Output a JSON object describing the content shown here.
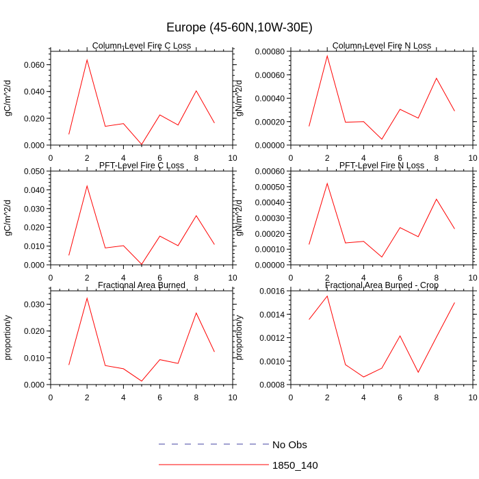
{
  "figure": {
    "title": "Europe (45-60N,10W-30E)",
    "series_color": "#ff0000",
    "obs_color": "#4040a0"
  },
  "legend": {
    "items": [
      {
        "label": "No Obs",
        "style": "dashed",
        "color": "#4040a0"
      },
      {
        "label": "1850_140",
        "style": "solid",
        "color": "#ff0000"
      }
    ]
  },
  "chart_data": [
    {
      "type": "line",
      "title": "Column-Level Fire C Loss",
      "xlabel": "",
      "ylabel": "gC/m^2/d",
      "xlim": [
        0,
        10
      ],
      "ylim": [
        0,
        0.07
      ],
      "xticks": [
        0,
        2,
        4,
        6,
        8,
        10
      ],
      "xtick_labels": [
        "0",
        "2",
        "4",
        "6",
        "8",
        "10"
      ],
      "yticks": [
        0,
        0.02,
        0.04,
        0.06
      ],
      "ytick_labels": [
        "0.000",
        "0.020",
        "0.040",
        "0.060"
      ],
      "yminor": 0.004,
      "series": [
        {
          "name": "1850_140",
          "x": [
            1,
            2,
            3,
            4,
            5,
            6,
            7,
            8,
            9
          ],
          "values": [
            0.008,
            0.0635,
            0.014,
            0.016,
            0.0005,
            0.0225,
            0.015,
            0.0405,
            0.0165
          ]
        }
      ]
    },
    {
      "type": "line",
      "title": "Column-Level Fire N Loss",
      "xlabel": "",
      "ylabel": "gN/m^2/d",
      "xlim": [
        0,
        10
      ],
      "ylim": [
        0,
        0.0008
      ],
      "xticks": [
        0,
        2,
        4,
        6,
        8,
        10
      ],
      "xtick_labels": [
        "0",
        "2",
        "4",
        "6",
        "8",
        "10"
      ],
      "yticks": [
        0,
        0.0002,
        0.0004,
        0.0006,
        0.0008
      ],
      "ytick_labels": [
        "0.00000",
        "0.00020",
        "0.00040",
        "0.00060",
        "0.00080"
      ],
      "yminor": 4e-05,
      "series": [
        {
          "name": "1850_140",
          "x": [
            1,
            2,
            3,
            4,
            5,
            6,
            7,
            8,
            9
          ],
          "values": [
            0.00016,
            0.00076,
            0.000195,
            0.0002,
            5e-05,
            0.000305,
            0.00023,
            0.00057,
            0.00029
          ]
        }
      ]
    },
    {
      "type": "line",
      "title": "PFT-Level Fire C Loss",
      "xlabel": "",
      "ylabel": "gC/m^2/d",
      "xlim": [
        0,
        10
      ],
      "ylim": [
        0,
        0.05
      ],
      "xticks": [
        0,
        2,
        4,
        6,
        8,
        10
      ],
      "xtick_labels": [
        "0",
        "2",
        "4",
        "6",
        "8",
        "10"
      ],
      "yticks": [
        0,
        0.01,
        0.02,
        0.03,
        0.04,
        0.05
      ],
      "ytick_labels": [
        "0.000",
        "0.010",
        "0.020",
        "0.030",
        "0.040",
        "0.050"
      ],
      "yminor": 0.002,
      "series": [
        {
          "name": "1850_140",
          "x": [
            1,
            2,
            3,
            4,
            5,
            6,
            7,
            8,
            9
          ],
          "values": [
            0.005,
            0.042,
            0.009,
            0.0102,
            0.0003,
            0.0153,
            0.0102,
            0.0262,
            0.0108
          ]
        }
      ]
    },
    {
      "type": "line",
      "title": "PFT-Level Fire N Loss",
      "xlabel": "",
      "ylabel": "gN/m^2/d",
      "xlim": [
        0,
        10
      ],
      "ylim": [
        0,
        0.0006
      ],
      "xticks": [
        0,
        2,
        4,
        6,
        8,
        10
      ],
      "xtick_labels": [
        "0",
        "2",
        "4",
        "6",
        "8",
        "10"
      ],
      "yticks": [
        0,
        0.0001,
        0.0002,
        0.0003,
        0.0004,
        0.0005,
        0.0006
      ],
      "ytick_labels": [
        "0.00000",
        "0.00010",
        "0.00020",
        "0.00030",
        "0.00040",
        "0.00050",
        "0.00060"
      ],
      "yminor": 2e-05,
      "series": [
        {
          "name": "1850_140",
          "x": [
            1,
            2,
            3,
            4,
            5,
            6,
            7,
            8,
            9
          ],
          "values": [
            0.00013,
            0.00052,
            0.00014,
            0.00015,
            5e-05,
            0.000238,
            0.00018,
            0.00042,
            0.00023
          ]
        }
      ]
    },
    {
      "type": "line",
      "title": "Fractional Area Burned",
      "xlabel": "",
      "ylabel": "proportion/y",
      "xlim": [
        0,
        10
      ],
      "ylim": [
        0,
        0.035
      ],
      "xticks": [
        0,
        2,
        4,
        6,
        8,
        10
      ],
      "xtick_labels": [
        "0",
        "2",
        "4",
        "6",
        "8",
        "10"
      ],
      "yticks": [
        0,
        0.01,
        0.02,
        0.03
      ],
      "ytick_labels": [
        "0.000",
        "0.010",
        "0.020",
        "0.030"
      ],
      "yminor": 0.002,
      "series": [
        {
          "name": "1850_140",
          "x": [
            1,
            2,
            3,
            4,
            5,
            6,
            7,
            8,
            9
          ],
          "values": [
            0.0073,
            0.0322,
            0.0071,
            0.0059,
            0.0013,
            0.0093,
            0.0079,
            0.0267,
            0.0122
          ]
        }
      ]
    },
    {
      "type": "line",
      "title": "Fractional Area Burned - Crop",
      "xlabel": "",
      "ylabel": "proportion/y",
      "xlim": [
        0,
        10
      ],
      "ylim": [
        0.0008,
        0.0016
      ],
      "xticks": [
        0,
        2,
        4,
        6,
        8,
        10
      ],
      "xtick_labels": [
        "0",
        "2",
        "4",
        "6",
        "8",
        "10"
      ],
      "yticks": [
        0.0008,
        0.001,
        0.0012,
        0.0014,
        0.0016
      ],
      "ytick_labels": [
        "0.0008",
        "0.0010",
        "0.0012",
        "0.0014",
        "0.0016"
      ],
      "yminor": 4e-05,
      "series": [
        {
          "name": "1850_140",
          "x": [
            1,
            2,
            3,
            4,
            5,
            6,
            7,
            8,
            9
          ],
          "values": [
            0.001355,
            0.001555,
            0.00097,
            0.000865,
            0.00094,
            0.001215,
            0.000905,
            0.001205,
            0.0015
          ]
        }
      ]
    }
  ]
}
